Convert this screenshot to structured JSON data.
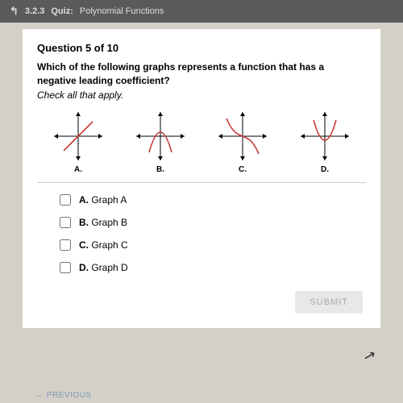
{
  "header": {
    "back_icon": "↰",
    "section": "3.2.3",
    "quiz_label": "Quiz:",
    "quiz_title": "Polynomial Functions"
  },
  "question": {
    "number_label": "Question 5 of 10",
    "text": "Which of the following graphs represents a function that has a negative leading coefficient?",
    "instruction": "Check all that apply."
  },
  "graphs": {
    "axis_color": "#000000",
    "curve_color": "#c73a3a",
    "curve_width": 1.6,
    "size": 68,
    "items": [
      {
        "label": "A.",
        "type": "linear_pos"
      },
      {
        "label": "B.",
        "type": "quad_neg"
      },
      {
        "label": "C.",
        "type": "cubic_neg"
      },
      {
        "label": "D.",
        "type": "quad_pos"
      }
    ]
  },
  "options": [
    {
      "letter": "A.",
      "text": "Graph A"
    },
    {
      "letter": "B.",
      "text": "Graph B"
    },
    {
      "letter": "C.",
      "text": "Graph C"
    },
    {
      "letter": "D.",
      "text": "Graph D"
    }
  ],
  "buttons": {
    "submit": "SUBMIT",
    "previous": "← PREVIOUS"
  },
  "colors": {
    "page_bg": "#d4d0c8",
    "card_bg": "#ffffff",
    "header_bg": "#5a5a5a"
  }
}
